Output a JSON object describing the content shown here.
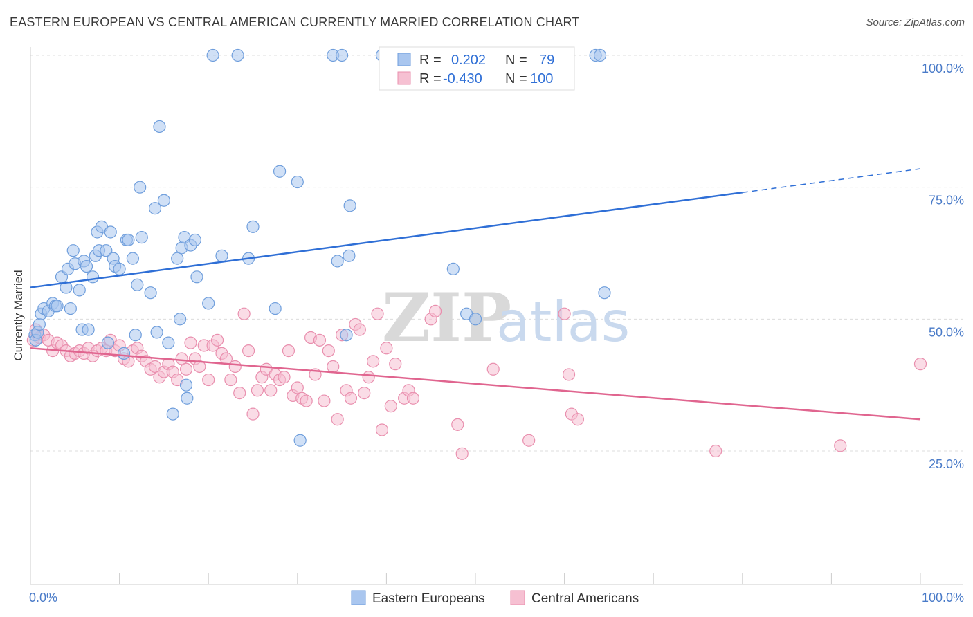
{
  "title": "EASTERN EUROPEAN VS CENTRAL AMERICAN CURRENTLY MARRIED CORRELATION CHART",
  "source": "Source: ZipAtlas.com",
  "watermark": {
    "zip": "ZIP",
    "atlas": "atlas"
  },
  "legend": {
    "r_label": "R =",
    "n_label": "N =",
    "rows": [
      {
        "r": "0.202",
        "n": "79"
      },
      {
        "r": "-0.430",
        "n": "100"
      }
    ]
  },
  "colors": {
    "blue_fill": "#a9c6ef",
    "blue_stroke": "#6f9edc",
    "blue_line": "#2f6fd6",
    "pink_fill": "#f6c0d2",
    "pink_stroke": "#e98fae",
    "pink_line": "#e0658f",
    "grid": "#dcdcdc"
  },
  "chart_data": {
    "type": "scatter",
    "xlabel": "",
    "ylabel": "Currently Married",
    "xlim": [
      0,
      100
    ],
    "ylim": [
      0,
      102
    ],
    "x_tick_labels": [
      "0.0%",
      "100.0%"
    ],
    "y_ticks": [
      25,
      50,
      75,
      100
    ],
    "y_tick_labels": [
      "25.0%",
      "50.0%",
      "75.0%",
      "100.0%"
    ],
    "grid": true,
    "legend_position": "top-center",
    "series": [
      {
        "name": "Eastern Europeans",
        "color": "#a9c6ef",
        "trend": {
          "x0": 0,
          "y0": 56.0,
          "x1": 80,
          "y1": 74.0,
          "dash_to_x": 100,
          "dash_to_y": 78.5
        },
        "points": [
          [
            0.5,
            47
          ],
          [
            0.6,
            46
          ],
          [
            0.8,
            47.5
          ],
          [
            1.0,
            49
          ],
          [
            1.2,
            51
          ],
          [
            1.5,
            52
          ],
          [
            2.0,
            51.5
          ],
          [
            2.5,
            53
          ],
          [
            2.8,
            52.5
          ],
          [
            3.0,
            52.5
          ],
          [
            3.5,
            58
          ],
          [
            4.0,
            56
          ],
          [
            4.2,
            59.5
          ],
          [
            4.5,
            52
          ],
          [
            4.8,
            63
          ],
          [
            5.0,
            60.5
          ],
          [
            5.5,
            55.5
          ],
          [
            5.8,
            48
          ],
          [
            6.0,
            61
          ],
          [
            6.3,
            60
          ],
          [
            6.5,
            48
          ],
          [
            7.0,
            58
          ],
          [
            7.3,
            62
          ],
          [
            7.5,
            66.5
          ],
          [
            7.7,
            63
          ],
          [
            8.0,
            67.5
          ],
          [
            8.5,
            63
          ],
          [
            8.7,
            45.5
          ],
          [
            9.0,
            66.5
          ],
          [
            9.3,
            61.5
          ],
          [
            9.5,
            60
          ],
          [
            10.0,
            59.5
          ],
          [
            10.5,
            43.5
          ],
          [
            10.8,
            65
          ],
          [
            11.0,
            65
          ],
          [
            11.5,
            61.5
          ],
          [
            11.8,
            47
          ],
          [
            12.0,
            56.5
          ],
          [
            12.5,
            65.5
          ],
          [
            12.3,
            75
          ],
          [
            13.5,
            55
          ],
          [
            14.0,
            71
          ],
          [
            14.5,
            86.5
          ],
          [
            15.0,
            72.5
          ],
          [
            15.5,
            45.5
          ],
          [
            16.0,
            32
          ],
          [
            16.5,
            61.5
          ],
          [
            16.8,
            50
          ],
          [
            17.0,
            63.5
          ],
          [
            17.3,
            65.5
          ],
          [
            17.5,
            37.5
          ],
          [
            17.6,
            35
          ],
          [
            18.0,
            64
          ],
          [
            18.5,
            65
          ],
          [
            18.7,
            58
          ],
          [
            20.5,
            100
          ],
          [
            20.0,
            53
          ],
          [
            21.5,
            62
          ],
          [
            23.3,
            100
          ],
          [
            24.5,
            61.5
          ],
          [
            25.0,
            67.5
          ],
          [
            27.5,
            52
          ],
          [
            28.0,
            78
          ],
          [
            30.0,
            76
          ],
          [
            30.3,
            27
          ],
          [
            34.0,
            100
          ],
          [
            34.5,
            61
          ],
          [
            35.0,
            100
          ],
          [
            35.5,
            47
          ],
          [
            35.8,
            62
          ],
          [
            35.9,
            71.5
          ],
          [
            39.5,
            100
          ],
          [
            47.5,
            59.5
          ],
          [
            49.0,
            51
          ],
          [
            50.0,
            50
          ],
          [
            63.5,
            100
          ],
          [
            64.5,
            55
          ],
          [
            64.0,
            100
          ],
          [
            14.2,
            47.5
          ]
        ]
      },
      {
        "name": "Central Americans",
        "color": "#f6c0d2",
        "trend": {
          "x0": 0,
          "y0": 44.5,
          "x1": 100,
          "y1": 31.0
        },
        "points": [
          [
            0.3,
            46
          ],
          [
            0.6,
            48
          ],
          [
            0.8,
            47
          ],
          [
            1.0,
            46.5
          ],
          [
            1.5,
            47
          ],
          [
            2.0,
            46
          ],
          [
            2.5,
            44
          ],
          [
            3.0,
            45.5
          ],
          [
            3.5,
            45
          ],
          [
            4.0,
            44
          ],
          [
            4.5,
            43
          ],
          [
            5.0,
            43.5
          ],
          [
            5.5,
            44
          ],
          [
            6.0,
            43.5
          ],
          [
            6.5,
            44.5
          ],
          [
            7.0,
            43
          ],
          [
            7.5,
            44
          ],
          [
            8.0,
            44.5
          ],
          [
            8.5,
            44
          ],
          [
            9.0,
            46
          ],
          [
            9.5,
            44
          ],
          [
            10.0,
            45
          ],
          [
            10.5,
            42.5
          ],
          [
            11.0,
            42
          ],
          [
            11.5,
            44
          ],
          [
            12.0,
            44.5
          ],
          [
            12.5,
            43
          ],
          [
            13.0,
            42
          ],
          [
            13.5,
            40.5
          ],
          [
            14.0,
            41
          ],
          [
            14.5,
            39
          ],
          [
            15.0,
            40
          ],
          [
            15.5,
            41.5
          ],
          [
            16.0,
            40
          ],
          [
            16.5,
            38.5
          ],
          [
            17.0,
            42.5
          ],
          [
            17.5,
            40.5
          ],
          [
            18.0,
            45.5
          ],
          [
            18.5,
            42.5
          ],
          [
            19.0,
            41
          ],
          [
            19.5,
            45
          ],
          [
            20.0,
            38.5
          ],
          [
            20.5,
            45
          ],
          [
            21.0,
            46
          ],
          [
            21.5,
            43.5
          ],
          [
            22.0,
            42.5
          ],
          [
            22.5,
            38.5
          ],
          [
            23.0,
            41
          ],
          [
            23.5,
            36
          ],
          [
            24.0,
            51
          ],
          [
            24.5,
            44
          ],
          [
            25.0,
            32
          ],
          [
            25.5,
            36.5
          ],
          [
            26.0,
            39
          ],
          [
            26.5,
            40.5
          ],
          [
            27.0,
            36.5
          ],
          [
            27.5,
            39.5
          ],
          [
            28.0,
            38.5
          ],
          [
            28.5,
            39
          ],
          [
            29.0,
            44
          ],
          [
            29.5,
            35.5
          ],
          [
            30.0,
            37
          ],
          [
            30.5,
            35
          ],
          [
            31.0,
            34.5
          ],
          [
            31.5,
            46.5
          ],
          [
            32.0,
            39.5
          ],
          [
            32.5,
            46
          ],
          [
            33.0,
            34.5
          ],
          [
            33.5,
            44
          ],
          [
            34.0,
            41
          ],
          [
            34.5,
            31
          ],
          [
            35.0,
            47
          ],
          [
            35.5,
            36.5
          ],
          [
            36.0,
            35
          ],
          [
            36.5,
            49
          ],
          [
            37.0,
            48
          ],
          [
            37.5,
            36
          ],
          [
            38.0,
            39
          ],
          [
            38.5,
            42
          ],
          [
            39.0,
            51
          ],
          [
            39.5,
            29
          ],
          [
            40.0,
            44.5
          ],
          [
            40.5,
            33.5
          ],
          [
            41.0,
            41.5
          ],
          [
            42.0,
            35
          ],
          [
            42.5,
            36.5
          ],
          [
            43.0,
            35
          ],
          [
            45.0,
            50
          ],
          [
            45.5,
            51.5
          ],
          [
            48.0,
            30
          ],
          [
            48.5,
            24.5
          ],
          [
            52.0,
            40.5
          ],
          [
            56.0,
            27
          ],
          [
            60.0,
            51
          ],
          [
            60.5,
            39.5
          ],
          [
            60.8,
            32
          ],
          [
            61.5,
            31
          ],
          [
            77.0,
            25
          ],
          [
            91.0,
            26
          ],
          [
            100.0,
            41.5
          ]
        ]
      }
    ]
  }
}
